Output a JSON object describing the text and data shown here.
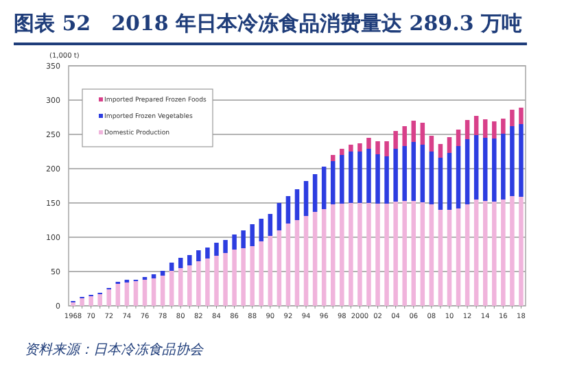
{
  "chart_data": {
    "type": "bar",
    "stacked": true,
    "title": "图表 52　2018 年日本冷冻食品消费量达 289.3 万吨",
    "ylabel": "(1,000 t)",
    "annotations": [
      "资料来源：日本冷冻食品协会"
    ],
    "categories": [
      "1968",
      null,
      "70",
      null,
      "72",
      null,
      "74",
      null,
      "76",
      null,
      "78",
      null,
      "80",
      null,
      "82",
      null,
      "84",
      null,
      "86",
      null,
      "88",
      null,
      "90",
      null,
      "92",
      null,
      "94",
      null,
      "96",
      null,
      "98",
      null,
      "2000",
      null,
      "02",
      null,
      "04",
      null,
      "06",
      null,
      "08",
      null,
      "10",
      null,
      "12",
      null,
      "14",
      null,
      "16",
      null,
      "18"
    ],
    "series": [
      {
        "name": "Domestic Production",
        "color": "#f0b4dc",
        "values": [
          5,
          11,
          14,
          17,
          24,
          32,
          34,
          36,
          38,
          40,
          44,
          51,
          55,
          59,
          65,
          69,
          73,
          77,
          82,
          84,
          87,
          94,
          102,
          110,
          120,
          125,
          131,
          137,
          141,
          148,
          149,
          150,
          150,
          150,
          149,
          149,
          152,
          153,
          153,
          151,
          148,
          140,
          140,
          142,
          148,
          155,
          153,
          152,
          155,
          160,
          159
        ]
      },
      {
        "name": "Imported Frozen Vegetables",
        "color": "#2d3de0",
        "values": [
          2,
          2,
          2,
          2,
          2,
          3,
          4,
          2,
          4,
          6,
          7,
          12,
          15,
          15,
          16,
          16,
          19,
          19,
          22,
          26,
          32,
          33,
          32,
          40,
          40,
          45,
          51,
          55,
          62,
          63,
          71,
          75,
          75,
          79,
          72,
          69,
          77,
          80,
          86,
          84,
          77,
          76,
          83,
          91,
          95,
          94,
          92,
          92,
          96,
          102,
          106
        ]
      },
      {
        "name": "Imported Prepared Frozen Foods",
        "color": "#d8408a",
        "values": [
          0,
          0,
          0,
          0,
          0,
          0,
          0,
          0,
          0,
          0,
          0,
          0,
          0,
          0,
          0,
          0,
          0,
          0,
          0,
          0,
          0,
          0,
          0,
          0,
          0,
          0,
          0,
          0,
          0,
          9,
          9,
          10,
          12,
          16,
          19,
          22,
          26,
          29,
          31,
          32,
          23,
          20,
          23,
          24,
          28,
          28,
          27,
          25,
          22,
          24,
          24
        ]
      }
    ],
    "ylim": [
      0,
      350
    ],
    "yticks": [
      0,
      50,
      100,
      150,
      200,
      250,
      300,
      350
    ],
    "grid": "y",
    "legend": "top left"
  }
}
